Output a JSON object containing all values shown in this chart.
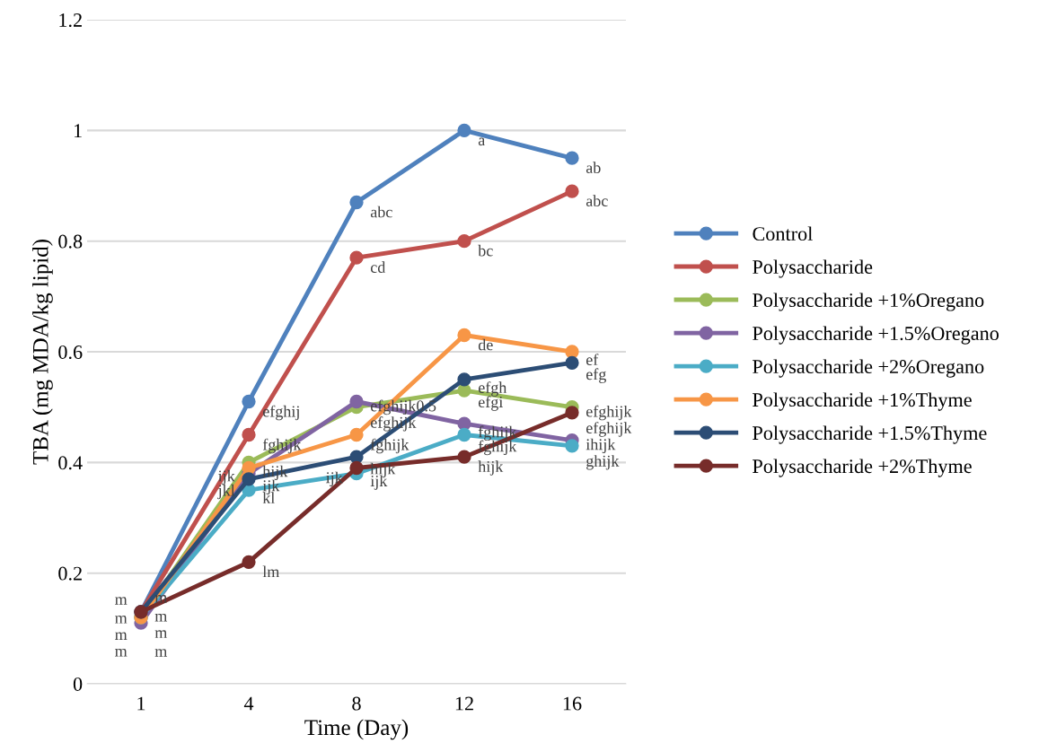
{
  "chart_data": {
    "type": "line",
    "xlabel": "Time (Day)",
    "ylabel": "TBA (mg MDA/kg lipid)",
    "categories": [
      "1",
      "4",
      "8",
      "12",
      "16"
    ],
    "ylim": [
      0,
      1.2
    ],
    "yticks": [
      0,
      0.2,
      0.4,
      0.6,
      0.8,
      1,
      1.2
    ],
    "grid": "y",
    "legend": "right",
    "marker": "circle",
    "line_style": "solid",
    "series": [
      {
        "name": "Control",
        "color": "#4f81bd",
        "values": [
          0.13,
          0.51,
          0.87,
          1.0,
          0.95
        ],
        "value_labels": [
          "m",
          "efghij",
          "abc",
          "a",
          "ab"
        ]
      },
      {
        "name": "Polysaccharide",
        "color": "#c0504d",
        "values": [
          0.13,
          0.45,
          0.77,
          0.8,
          0.89
        ],
        "value_labels": [
          "m",
          "fghijk",
          "cd",
          "bc",
          "abc"
        ]
      },
      {
        "name": "Polysaccharide +1%Oregano",
        "color": "#9bbb59",
        "values": [
          0.12,
          0.4,
          0.5,
          0.53,
          0.5
        ],
        "value_labels": [
          "m",
          "hijk",
          "efghijk",
          "efgi",
          "efghijk"
        ]
      },
      {
        "name": "Polysaccharide +1.5%Oregano",
        "color": "#8064a2",
        "values": [
          0.11,
          0.38,
          0.51,
          0.47,
          0.44
        ],
        "value_labels": [
          "m",
          "ijk",
          "efghijk0.5",
          "fghijk",
          "ihijk"
        ]
      },
      {
        "name": "Polysaccharide +2%Oregano",
        "color": "#4bacc6",
        "values": [
          0.12,
          0.35,
          0.38,
          0.45,
          0.43
        ],
        "value_labels": [
          "m",
          "kl",
          "ijk",
          "fghijk",
          "ghijk"
        ]
      },
      {
        "name": "Polysaccharide +1%Thyme",
        "color": "#f79646",
        "values": [
          0.12,
          0.39,
          0.45,
          0.63,
          0.6
        ],
        "value_labels": [
          "m",
          "ijk",
          "fghijk",
          "de",
          "ef"
        ]
      },
      {
        "name": "Polysaccharide +1.5%Thyme",
        "color": "#2c4d75",
        "values": [
          0.13,
          0.37,
          0.41,
          0.55,
          0.58
        ],
        "value_labels": [
          "m",
          "jkl",
          "hijk",
          "efgh",
          "efg"
        ]
      },
      {
        "name": "Polysaccharide +2%Thyme",
        "color": "#772c2a",
        "values": [
          0.13,
          0.22,
          0.39,
          0.41,
          0.49
        ],
        "value_labels": [
          "m",
          "lm",
          "ijk",
          "hijk",
          "efghijk"
        ]
      }
    ]
  }
}
